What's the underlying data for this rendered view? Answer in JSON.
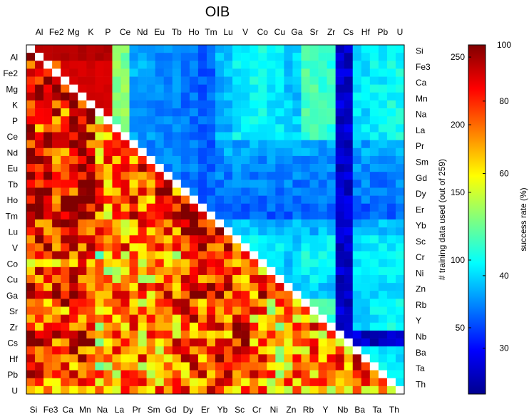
{
  "chart_data": {
    "type": "heatmap",
    "title": "OIB",
    "top_labels": [
      "Al",
      "Fe2",
      "Mg",
      "K",
      "P",
      "Ce",
      "Nd",
      "Eu",
      "Tb",
      "Ho",
      "Tm",
      "Lu",
      "V",
      "Co",
      "Cu",
      "Ga",
      "Sr",
      "Zr",
      "Cs",
      "Hf",
      "Pb",
      "U"
    ],
    "left_labels": [
      "Al",
      "Fe2",
      "Mg",
      "K",
      "P",
      "Ce",
      "Nd",
      "Eu",
      "Tb",
      "Ho",
      "Tm",
      "Lu",
      "V",
      "Co",
      "Cu",
      "Ga",
      "Sr",
      "Zr",
      "Cs",
      "Hf",
      "Pb",
      "U"
    ],
    "bottom_labels": [
      "Si",
      "Fe3",
      "Ca",
      "Mn",
      "Na",
      "La",
      "Pr",
      "Sm",
      "Gd",
      "Dy",
      "Er",
      "Yb",
      "Sc",
      "Cr",
      "Ni",
      "Zn",
      "Rb",
      "Y",
      "Nb",
      "Ba",
      "Ta",
      "Th"
    ],
    "right_labels": [
      "Si",
      "Fe3",
      "Ca",
      "Mn",
      "Na",
      "La",
      "Pr",
      "Sm",
      "Gd",
      "Dy",
      "Er",
      "Yb",
      "Sc",
      "Cr",
      "Ni",
      "Zn",
      "Rb",
      "Y",
      "Nb",
      "Ba",
      "Ta",
      "Th"
    ],
    "grid_size": 44,
    "lower_triangle": "success rate (%)",
    "upper_triangle": "# training data used (out of 259)",
    "colorbar": {
      "left_label": "# training data used (out of 259)",
      "right_label": "success rate (%)",
      "left_ticks": [
        50,
        100,
        150,
        200,
        250
      ],
      "left_range": [
        1,
        259
      ],
      "right_ticks": [
        30,
        40,
        60,
        80,
        100
      ],
      "right_range": [
        25,
        100
      ],
      "colormap": "jet"
    },
    "upper_row_base": [
      248,
      200,
      240,
      240,
      238,
      130,
      75,
      70,
      65,
      62,
      58,
      80,
      95,
      100,
      92,
      85,
      115,
      110,
      20,
      90,
      95,
      100
    ],
    "upper_col_base": [
      240,
      200,
      240,
      240,
      238,
      130,
      75,
      70,
      65,
      62,
      58,
      80,
      95,
      100,
      92,
      85,
      115,
      110,
      20,
      90,
      95,
      100
    ],
    "lower_row_base": [
      92,
      94,
      90,
      92,
      88,
      85,
      90,
      88,
      92,
      94,
      95,
      90,
      88,
      75,
      78,
      90,
      82,
      80,
      82,
      82,
      80,
      78
    ],
    "lower_col_base": [
      92,
      90,
      90,
      92,
      70,
      75,
      80,
      78,
      82,
      90,
      92,
      90,
      92,
      82,
      72,
      80,
      82,
      75,
      80,
      85,
      85,
      85
    ]
  }
}
